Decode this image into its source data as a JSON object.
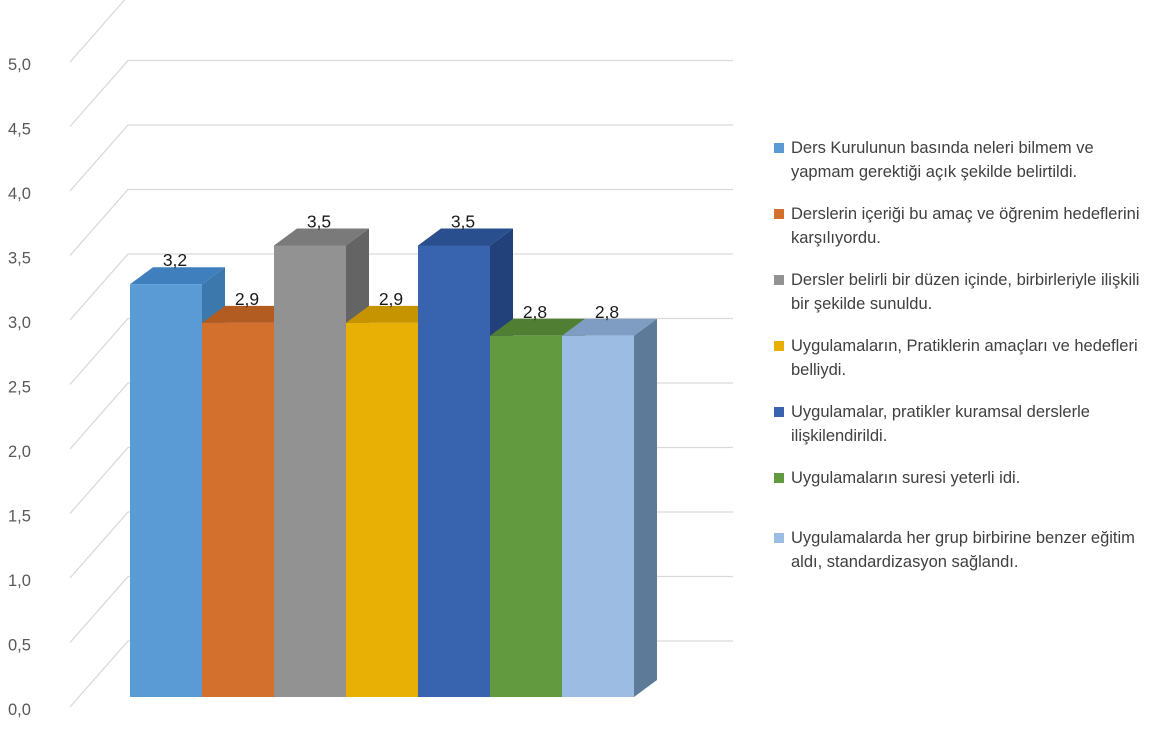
{
  "chart_data": {
    "type": "bar",
    "title": "",
    "xlabel": "",
    "ylabel": "",
    "ylim": [
      0,
      5
    ],
    "yticks": [
      "0,0",
      "0,5",
      "1,0",
      "1,5",
      "2,0",
      "2,5",
      "3,0",
      "3,5",
      "4,0",
      "4,5",
      "5,0"
    ],
    "grid": true,
    "legend_position": "right",
    "style": "3d-clustered-column",
    "series": [
      {
        "name": "Ders Kurulunun basında neleri bilmem ve yapmam gerektiği açık şekilde belirtildi.",
        "value": 3.2,
        "label": "3,2",
        "color": "#5B9BD5",
        "side": "#3D78AC",
        "top": "#3F7FBD"
      },
      {
        "name": "Derslerin içeriği bu amaç ve öğrenim hedeflerini karşılıyordu.",
        "value": 2.9,
        "label": "2,9",
        "color": "#D4702E",
        "side": "#A3541E",
        "top": "#B35C22"
      },
      {
        "name": "Dersler belirli bir düzen içinde, birbirleriyle ilişkili bir şekilde sunuldu.",
        "value": 3.5,
        "label": "3,5",
        "color": "#929292",
        "side": "#646464",
        "top": "#7A7A7A"
      },
      {
        "name": "Uygulamaların, Pratiklerin  amaçları ve hedefleri belliydi.",
        "value": 2.9,
        "label": "2,9",
        "color": "#E8AF05",
        "side": "#B08400",
        "top": "#C69400"
      },
      {
        "name": "Uygulamalar, pratikler kuramsal derslerle ilişkilendirildi.",
        "value": 3.5,
        "label": "3,5",
        "color": "#3863AE",
        "side": "#22417A",
        "top": "#2A4F8E"
      },
      {
        "name": "Uygulamaların suresi yeterli idi.",
        "value": 2.8,
        "label": "2,8",
        "color": "#629A40",
        "side": "#426C2A",
        "top": "#507F33"
      },
      {
        "name": "Uygulamalarda her grup birbirine benzer eğitim aldı, standardizasyon sağlandı.",
        "value": 2.8,
        "label": "2,8",
        "color": "#9CBCE4",
        "side": "#5D7A99",
        "top": "#7F9CC2"
      }
    ]
  }
}
